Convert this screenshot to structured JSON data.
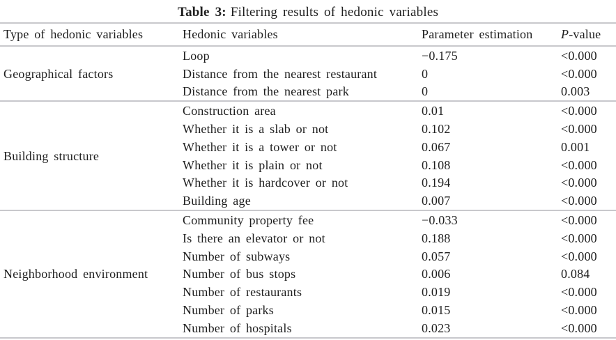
{
  "title": {
    "prefix": "Table 3:",
    "text": "Filtering results of hedonic variables"
  },
  "table": {
    "headers": [
      "Type of hedonic variables",
      "Hedonic variables",
      "Parameter estimation"
    ],
    "p_header": {
      "italic": "P",
      "rest": "-value"
    },
    "groups": [
      {
        "type": "Geographical factors",
        "rows": [
          {
            "variable": "Loop",
            "estimate": "−0.175",
            "p": "<0.000"
          },
          {
            "variable": "Distance from the nearest restaurant",
            "estimate": "0",
            "p": "<0.000"
          },
          {
            "variable": "Distance from the nearest park",
            "estimate": "0",
            "p": "0.003"
          }
        ]
      },
      {
        "type": "Building structure",
        "rows": [
          {
            "variable": "Construction area",
            "estimate": "0.01",
            "p": "<0.000"
          },
          {
            "variable": "Whether it is a slab or not",
            "estimate": "0.102",
            "p": "<0.000"
          },
          {
            "variable": "Whether it is a tower or not",
            "estimate": "0.067",
            "p": "0.001"
          },
          {
            "variable": "Whether it is plain or not",
            "estimate": "0.108",
            "p": "<0.000"
          },
          {
            "variable": "Whether it is hardcover or not",
            "estimate": "0.194",
            "p": "<0.000"
          },
          {
            "variable": "Building age",
            "estimate": "0.007",
            "p": "<0.000"
          }
        ]
      },
      {
        "type": "Neighborhood environment",
        "rows": [
          {
            "variable": "Community property fee",
            "estimate": "−0.033",
            "p": "<0.000"
          },
          {
            "variable": "Is there an elevator or not",
            "estimate": "0.188",
            "p": "<0.000"
          },
          {
            "variable": "Number of subways",
            "estimate": "0.057",
            "p": "<0.000"
          },
          {
            "variable": "Number of bus stops",
            "estimate": "0.006",
            "p": "0.084"
          },
          {
            "variable": "Number of restaurants",
            "estimate": "0.019",
            "p": "<0.000"
          },
          {
            "variable": "Number of parks",
            "estimate": "0.015",
            "p": "<0.000"
          },
          {
            "variable": "Number of hospitals",
            "estimate": "0.023",
            "p": "<0.000"
          }
        ]
      }
    ]
  },
  "colors": {
    "rule": "#c8c8cc",
    "text": "#1e1e1e",
    "background": "#ffffff"
  }
}
